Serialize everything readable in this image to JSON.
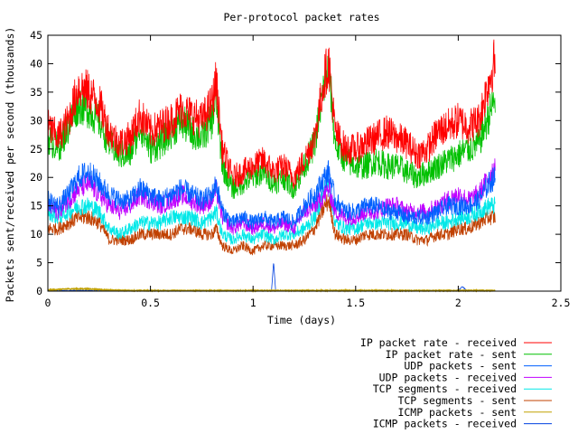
{
  "chart_data": {
    "type": "line",
    "title": "Per-protocol packet rates",
    "xlabel": "Time (days)",
    "ylabel": "Packets sent/received per second (thousands)",
    "xlim": [
      0,
      2.5
    ],
    "ylim": [
      0,
      45
    ],
    "xticks": [
      0,
      0.5,
      1,
      1.5,
      2,
      2.5
    ],
    "xtick_labels": [
      "0",
      "0.5",
      "1",
      "1.5",
      "2",
      "2.5"
    ],
    "yticks": [
      0,
      5,
      10,
      15,
      20,
      25,
      30,
      35,
      40,
      45
    ],
    "ytick_labels": [
      "0",
      "5",
      "10",
      "15",
      "20",
      "25",
      "30",
      "35",
      "40",
      "45"
    ],
    "grid": false,
    "legend_position": "bottom-right outside",
    "series": [
      {
        "name": "IP packet rate - received",
        "color": "#ff0000",
        "x": [
          0,
          0.05,
          0.1,
          0.15,
          0.2,
          0.25,
          0.3,
          0.35,
          0.4,
          0.45,
          0.5,
          0.55,
          0.6,
          0.65,
          0.7,
          0.75,
          0.8,
          0.82,
          0.85,
          0.9,
          0.95,
          1.0,
          1.05,
          1.1,
          1.15,
          1.2,
          1.25,
          1.3,
          1.35,
          1.37,
          1.4,
          1.45,
          1.5,
          1.55,
          1.6,
          1.65,
          1.7,
          1.75,
          1.8,
          1.85,
          1.9,
          1.95,
          2.0,
          2.05,
          2.1,
          2.15,
          2.18
        ],
        "y": [
          29,
          27,
          30,
          36,
          35,
          33,
          28,
          26,
          27,
          31,
          28,
          29,
          30,
          32,
          31,
          30,
          33,
          37,
          25,
          20,
          21,
          22,
          23,
          21,
          22,
          20,
          23,
          27,
          38,
          40,
          28,
          25,
          25,
          26,
          27,
          28,
          27,
          26,
          24,
          25,
          28,
          29,
          30,
          29,
          30,
          37,
          41
        ]
      },
      {
        "name": "IP packet rate - sent",
        "color": "#00c000",
        "x": [
          0,
          0.05,
          0.1,
          0.15,
          0.2,
          0.25,
          0.3,
          0.35,
          0.4,
          0.45,
          0.5,
          0.55,
          0.6,
          0.65,
          0.7,
          0.75,
          0.8,
          0.82,
          0.85,
          0.9,
          0.95,
          1.0,
          1.05,
          1.1,
          1.15,
          1.2,
          1.25,
          1.3,
          1.35,
          1.37,
          1.4,
          1.45,
          1.5,
          1.55,
          1.6,
          1.65,
          1.7,
          1.75,
          1.8,
          1.85,
          1.9,
          1.95,
          2.0,
          2.05,
          2.1,
          2.15,
          2.18
        ],
        "y": [
          27,
          25,
          29,
          33,
          32,
          30,
          26,
          24,
          24,
          29,
          25,
          26,
          28,
          30,
          28,
          27,
          30,
          34,
          22,
          18,
          19,
          20,
          21,
          19,
          20,
          18,
          22,
          26,
          37,
          39,
          26,
          23,
          22,
          22,
          23,
          22,
          22,
          21,
          20,
          21,
          22,
          23,
          24,
          25,
          26,
          31,
          34
        ]
      },
      {
        "name": "UDP packets - sent",
        "color": "#0060ff",
        "x": [
          0,
          0.05,
          0.1,
          0.15,
          0.2,
          0.25,
          0.3,
          0.35,
          0.4,
          0.45,
          0.5,
          0.55,
          0.6,
          0.65,
          0.7,
          0.75,
          0.8,
          0.82,
          0.85,
          0.9,
          0.95,
          1.0,
          1.05,
          1.1,
          1.15,
          1.2,
          1.25,
          1.3,
          1.35,
          1.37,
          1.4,
          1.45,
          1.5,
          1.55,
          1.6,
          1.65,
          1.7,
          1.75,
          1.8,
          1.85,
          1.9,
          1.95,
          2.0,
          2.05,
          2.1,
          2.15,
          2.18
        ],
        "y": [
          16,
          15,
          17,
          20,
          21,
          19,
          17,
          16,
          16,
          18,
          17,
          16,
          17,
          18,
          17,
          16,
          17,
          19,
          14,
          12,
          13,
          12,
          13,
          12,
          13,
          12,
          15,
          17,
          20,
          21,
          16,
          14,
          14,
          15,
          15,
          14,
          14,
          13,
          13,
          13,
          14,
          15,
          15,
          15,
          16,
          19,
          20
        ]
      },
      {
        "name": "UDP packets - received",
        "color": "#c000ff",
        "x": [
          0,
          0.05,
          0.1,
          0.15,
          0.2,
          0.25,
          0.3,
          0.35,
          0.4,
          0.45,
          0.5,
          0.55,
          0.6,
          0.65,
          0.7,
          0.75,
          0.8,
          0.82,
          0.85,
          0.9,
          0.95,
          1.0,
          1.05,
          1.1,
          1.15,
          1.2,
          1.25,
          1.3,
          1.35,
          1.37,
          1.4,
          1.45,
          1.5,
          1.55,
          1.6,
          1.65,
          1.7,
          1.75,
          1.8,
          1.85,
          1.9,
          1.95,
          2.0,
          2.05,
          2.1,
          2.15,
          2.18
        ],
        "y": [
          15,
          14,
          16,
          18,
          19,
          17,
          15,
          14,
          15,
          17,
          16,
          15,
          16,
          17,
          16,
          15,
          16,
          18,
          13,
          11,
          12,
          11,
          12,
          11,
          12,
          11,
          14,
          15,
          17,
          18,
          14,
          13,
          13,
          14,
          14,
          15,
          15,
          14,
          14,
          14,
          15,
          16,
          17,
          16,
          17,
          20,
          22
        ]
      },
      {
        "name": "TCP segments - received",
        "color": "#00e8e8",
        "x": [
          0,
          0.05,
          0.1,
          0.15,
          0.2,
          0.25,
          0.3,
          0.35,
          0.4,
          0.45,
          0.5,
          0.55,
          0.6,
          0.65,
          0.7,
          0.75,
          0.8,
          0.82,
          0.85,
          0.9,
          0.95,
          1.0,
          1.05,
          1.1,
          1.15,
          1.2,
          1.25,
          1.3,
          1.35,
          1.37,
          1.4,
          1.45,
          1.5,
          1.55,
          1.6,
          1.65,
          1.7,
          1.75,
          1.8,
          1.85,
          1.9,
          1.95,
          2.0,
          2.05,
          2.1,
          2.15,
          2.18
        ],
        "y": [
          14,
          13,
          14,
          15,
          15,
          14,
          11,
          10,
          11,
          12,
          12,
          12,
          13,
          13,
          13,
          12,
          13,
          14,
          10,
          9,
          10,
          9,
          10,
          9,
          10,
          10,
          11,
          13,
          18,
          19,
          12,
          11,
          11,
          12,
          12,
          12,
          12,
          12,
          11,
          11,
          12,
          12,
          13,
          13,
          14,
          15,
          15
        ]
      },
      {
        "name": "TCP segments - sent",
        "color": "#c04000",
        "x": [
          0,
          0.05,
          0.1,
          0.15,
          0.2,
          0.25,
          0.3,
          0.35,
          0.4,
          0.45,
          0.5,
          0.55,
          0.6,
          0.65,
          0.7,
          0.75,
          0.8,
          0.82,
          0.85,
          0.9,
          0.95,
          1.0,
          1.05,
          1.1,
          1.15,
          1.2,
          1.25,
          1.3,
          1.35,
          1.37,
          1.4,
          1.45,
          1.5,
          1.55,
          1.6,
          1.65,
          1.7,
          1.75,
          1.8,
          1.85,
          1.9,
          1.95,
          2.0,
          2.05,
          2.1,
          2.15,
          2.18
        ],
        "y": [
          11,
          11,
          12,
          13,
          13,
          12,
          9,
          9,
          9,
          10,
          10,
          10,
          10,
          11,
          11,
          10,
          10,
          11,
          8,
          7,
          8,
          7,
          8,
          8,
          8,
          8,
          9,
          11,
          15,
          16,
          10,
          9,
          9,
          10,
          10,
          10,
          10,
          10,
          9,
          9,
          10,
          10,
          11,
          11,
          12,
          13,
          13
        ]
      },
      {
        "name": "ICMP packets - sent",
        "color": "#c0a000",
        "x": [
          0,
          0.05,
          0.1,
          0.15,
          0.2,
          0.25,
          0.3,
          0.4,
          0.6,
          0.8,
          1.0,
          1.2,
          1.4,
          1.6,
          1.8,
          2.0,
          2.18
        ],
        "y": [
          0.2,
          0.3,
          0.4,
          0.4,
          0.4,
          0.3,
          0.2,
          0.1,
          0.1,
          0.1,
          0.1,
          0.1,
          0.1,
          0.1,
          0.1,
          0.1,
          0.1
        ]
      },
      {
        "name": "ICMP packets - received",
        "color": "#0040e0",
        "x": [
          0,
          0.2,
          0.4,
          0.6,
          0.8,
          1.0,
          1.09,
          1.1,
          1.11,
          1.3,
          1.5,
          1.7,
          1.9,
          2.0,
          2.02,
          2.04,
          2.18
        ],
        "y": [
          0.1,
          0.1,
          0.1,
          0.1,
          0.1,
          0.1,
          0.1,
          5.2,
          0.1,
          0.1,
          0.1,
          0.1,
          0.1,
          0.1,
          0.8,
          0.1,
          0.1
        ]
      }
    ]
  }
}
